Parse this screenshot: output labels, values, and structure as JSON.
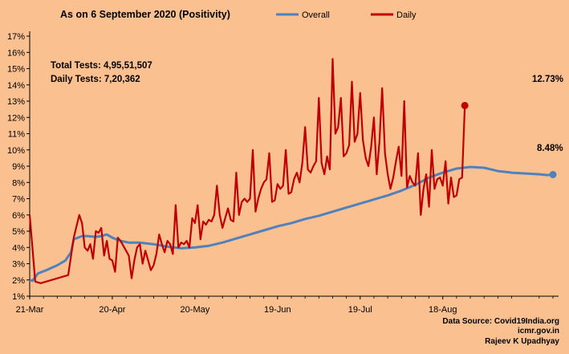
{
  "chart_data": {
    "type": "line",
    "title": "As on 6 September 2020 (Positivity)",
    "x_start_label": "21-Mar",
    "x_tick_labels": [
      "21-Mar",
      "20-Apr",
      "20-May",
      "19-Jun",
      "19-Jul",
      "18-Aug"
    ],
    "y_tick_labels": [
      "1%",
      "2%",
      "3%",
      "4%",
      "5%",
      "6%",
      "7%",
      "8%",
      "9%",
      "10%",
      "11%",
      "12%",
      "13%",
      "14%",
      "15%",
      "16%",
      "17%"
    ],
    "ylim": [
      1,
      17
    ],
    "grid": false,
    "legend_position": "top",
    "annotations": {
      "total_tests": "Total Tests: 4,95,51,507",
      "daily_tests": "Daily Tests: 7,20,362",
      "daily_last_label": "12.73%",
      "overall_last_label": "8.48%"
    },
    "source_lines": [
      "Data Source: Covid19India.org",
      "icmr.gov.in",
      "Rajeev K Upadhyay"
    ],
    "series": [
      {
        "name": "Overall",
        "color": "#4f81bd",
        "points": [
          [
            0,
            2.0
          ],
          [
            1,
            1.95
          ],
          [
            3,
            2.4
          ],
          [
            6,
            2.6
          ],
          [
            10,
            2.9
          ],
          [
            13,
            3.2
          ],
          [
            15,
            3.7
          ],
          [
            16,
            4.5
          ],
          [
            19,
            4.7
          ],
          [
            21,
            4.7
          ],
          [
            24,
            4.65
          ],
          [
            26,
            4.7
          ],
          [
            28,
            4.8
          ],
          [
            30,
            4.6
          ],
          [
            33,
            4.4
          ],
          [
            36,
            4.3
          ],
          [
            40,
            4.3
          ],
          [
            45,
            4.2
          ],
          [
            50,
            4.05
          ],
          [
            55,
            3.95
          ],
          [
            60,
            4.0
          ],
          [
            65,
            4.1
          ],
          [
            70,
            4.3
          ],
          [
            75,
            4.55
          ],
          [
            80,
            4.8
          ],
          [
            85,
            5.05
          ],
          [
            90,
            5.3
          ],
          [
            95,
            5.5
          ],
          [
            100,
            5.75
          ],
          [
            105,
            5.95
          ],
          [
            110,
            6.2
          ],
          [
            115,
            6.45
          ],
          [
            120,
            6.7
          ],
          [
            125,
            6.95
          ],
          [
            130,
            7.2
          ],
          [
            135,
            7.5
          ],
          [
            140,
            7.85
          ],
          [
            145,
            8.3
          ],
          [
            150,
            8.6
          ],
          [
            155,
            8.85
          ],
          [
            160,
            8.95
          ],
          [
            165,
            8.9
          ],
          [
            170,
            8.7
          ],
          [
            175,
            8.6
          ],
          [
            180,
            8.55
          ],
          [
            185,
            8.5
          ],
          [
            188,
            8.45
          ],
          [
            190,
            8.48
          ]
        ]
      },
      {
        "name": "Daily",
        "color": "#c00000",
        "points": [
          [
            0,
            6.0
          ],
          [
            1,
            4.0
          ],
          [
            2,
            1.9
          ],
          [
            4,
            1.8
          ],
          [
            14,
            2.3
          ],
          [
            16,
            4.6
          ],
          [
            17,
            5.3
          ],
          [
            18,
            6.0
          ],
          [
            19,
            5.5
          ],
          [
            20,
            4.0
          ],
          [
            21,
            3.8
          ],
          [
            22,
            4.2
          ],
          [
            23,
            3.3
          ],
          [
            24,
            5.0
          ],
          [
            25,
            4.9
          ],
          [
            26,
            5.2
          ],
          [
            27,
            3.5
          ],
          [
            28,
            4.4
          ],
          [
            29,
            3.3
          ],
          [
            30,
            3.2
          ],
          [
            31,
            2.5
          ],
          [
            32,
            4.6
          ],
          [
            33,
            4.4
          ],
          [
            36,
            3.5
          ],
          [
            37,
            2.1
          ],
          [
            38,
            3.2
          ],
          [
            39,
            4.0
          ],
          [
            40,
            4.2
          ],
          [
            41,
            3.0
          ],
          [
            42,
            3.8
          ],
          [
            43,
            3.2
          ],
          [
            44,
            2.6
          ],
          [
            45,
            2.9
          ],
          [
            46,
            3.6
          ],
          [
            47,
            4.8
          ],
          [
            48,
            4.2
          ],
          [
            49,
            3.7
          ],
          [
            50,
            4.4
          ],
          [
            51,
            4.2
          ],
          [
            52,
            3.6
          ],
          [
            53,
            6.6
          ],
          [
            54,
            4.0
          ],
          [
            55,
            4.3
          ],
          [
            56,
            4.2
          ],
          [
            57,
            4.4
          ],
          [
            58,
            4.0
          ],
          [
            59,
            5.8
          ],
          [
            60,
            5.5
          ],
          [
            61,
            6.6
          ],
          [
            62,
            4.5
          ],
          [
            63,
            5.6
          ],
          [
            64,
            5.4
          ],
          [
            65,
            5.7
          ],
          [
            66,
            5.6
          ],
          [
            67,
            6.0
          ],
          [
            68,
            7.8
          ],
          [
            69,
            6.0
          ],
          [
            70,
            5.2
          ],
          [
            71,
            5.8
          ],
          [
            72,
            6.4
          ],
          [
            73,
            5.7
          ],
          [
            74,
            5.6
          ],
          [
            75,
            8.6
          ],
          [
            76,
            6.0
          ],
          [
            77,
            6.8
          ],
          [
            78,
            7.0
          ],
          [
            79,
            6.8
          ],
          [
            80,
            7.0
          ],
          [
            81,
            10.0
          ],
          [
            82,
            6.2
          ],
          [
            83,
            7.0
          ],
          [
            84,
            7.6
          ],
          [
            85,
            8.0
          ],
          [
            86,
            8.2
          ],
          [
            87,
            9.8
          ],
          [
            88,
            6.8
          ],
          [
            89,
            6.9
          ],
          [
            90,
            7.9
          ],
          [
            91,
            7.6
          ],
          [
            92,
            7.8
          ],
          [
            93,
            10.0
          ],
          [
            94,
            7.3
          ],
          [
            95,
            7.4
          ],
          [
            96,
            8.2
          ],
          [
            97,
            8.6
          ],
          [
            98,
            8.0
          ],
          [
            99,
            9.2
          ],
          [
            100,
            11.4
          ],
          [
            101,
            8.8
          ],
          [
            102,
            8.6
          ],
          [
            103,
            9.0
          ],
          [
            104,
            9.3
          ],
          [
            105,
            13.2
          ],
          [
            106,
            9.2
          ],
          [
            107,
            8.5
          ],
          [
            108,
            9.6
          ],
          [
            109,
            8.8
          ],
          [
            110,
            15.6
          ],
          [
            111,
            11.0
          ],
          [
            112,
            11.4
          ],
          [
            113,
            13.2
          ],
          [
            114,
            9.6
          ],
          [
            115,
            9.8
          ],
          [
            116,
            10.3
          ],
          [
            117,
            14.2
          ],
          [
            118,
            10.5
          ],
          [
            119,
            11.0
          ],
          [
            120,
            13.5
          ],
          [
            121,
            10.6
          ],
          [
            122,
            9.5
          ],
          [
            123,
            9.0
          ],
          [
            124,
            10.2
          ],
          [
            125,
            12.0
          ],
          [
            126,
            8.5
          ],
          [
            127,
            10.5
          ],
          [
            128,
            13.8
          ],
          [
            129,
            9.8
          ],
          [
            130,
            8.5
          ],
          [
            131,
            7.6
          ],
          [
            132,
            8.3
          ],
          [
            133,
            9.3
          ],
          [
            134,
            10.2
          ],
          [
            135,
            8.4
          ],
          [
            136,
            13.0
          ],
          [
            137,
            7.7
          ],
          [
            138,
            8.4
          ],
          [
            139,
            8.0
          ],
          [
            140,
            7.8
          ],
          [
            141,
            9.8
          ],
          [
            142,
            6.0
          ],
          [
            143,
            7.6
          ],
          [
            144,
            8.5
          ],
          [
            145,
            6.5
          ],
          [
            146,
            10.0
          ],
          [
            147,
            7.6
          ],
          [
            148,
            8.2
          ],
          [
            149,
            8.3
          ],
          [
            150,
            7.8
          ],
          [
            151,
            9.3
          ],
          [
            152,
            6.7
          ],
          [
            153,
            8.3
          ],
          [
            154,
            7.1
          ],
          [
            155,
            7.2
          ],
          [
            156,
            8.2
          ],
          [
            157,
            8.3
          ],
          [
            158,
            12.73
          ]
        ]
      }
    ]
  }
}
